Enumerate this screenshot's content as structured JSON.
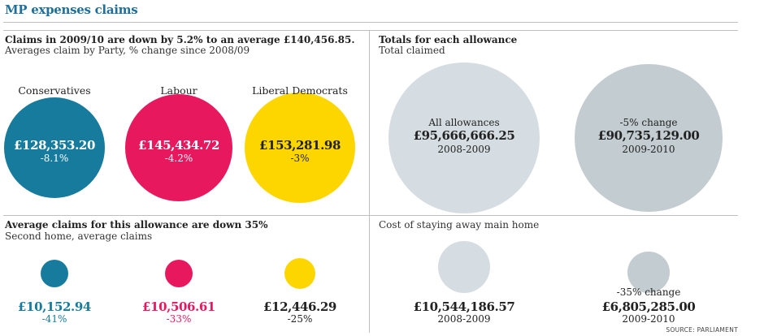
{
  "title": "MP expenses claims",
  "source": "SOURCE: PARLIAMENT",
  "colors": {
    "conservatives": "#177b9e",
    "labour": "#e8185f",
    "libdem": "#fdd600",
    "grey_light": "#d5dde2",
    "grey_dark": "#c3ccd1",
    "title_blue": "#1f6f9a"
  },
  "panels": {
    "party_average": {
      "title": "Claims in 2009/10 are down by 5.2% to an average £140,456.85.",
      "subtitle": "Averages claim by Party, % change since 2008/09"
    },
    "second_home": {
      "title": "Average claims for this allowance are down 35%",
      "subtitle": "Second home, average claims"
    },
    "totals": {
      "title": "Totals for each allowance",
      "subtitle": "Total claimed"
    },
    "main_home": {
      "title": "Cost of staying away main home"
    }
  },
  "chart_data": [
    {
      "type": "bubble",
      "title": "Claims in 2009/10 are down by 5.2% to an average £140,456.85.",
      "subtitle": "Averages claim by Party, % change since 2008/09",
      "categories": [
        "Conservatives",
        "Labour",
        "Liberal Democrats"
      ],
      "values": [
        128353.2,
        145434.72,
        153281.98
      ],
      "value_labels": [
        "£128,353.20",
        "£145,434.72",
        "£153,281.98"
      ],
      "change_labels": [
        "-8.1%",
        "-4.2%",
        "-3%"
      ],
      "change_pct": [
        -8.1,
        -4.2,
        -3
      ]
    },
    {
      "type": "bubble",
      "title": "Average claims for this allowance are down 35%",
      "subtitle": "Second home, average claims",
      "categories": [
        "Conservatives",
        "Labour",
        "Liberal Democrats"
      ],
      "values": [
        10152.94,
        10506.61,
        12446.29
      ],
      "value_labels": [
        "£10,152.94",
        "£10,506.61",
        "£12,446.29"
      ],
      "change_labels": [
        "-41%",
        "-33%",
        "-25%"
      ],
      "change_pct": [
        -41,
        -33,
        -25
      ]
    },
    {
      "type": "bubble",
      "title": "Totals for each allowance",
      "subtitle": "Total claimed",
      "categories": [
        "2008-2009",
        "2009-2010"
      ],
      "values": [
        95666666.25,
        90735129.0
      ],
      "value_labels": [
        "£95,666,666.25",
        "£90,735,129.00"
      ],
      "notes": [
        "All allowances",
        "-5% change"
      ]
    },
    {
      "type": "bubble",
      "title": "Cost of staying away main home",
      "categories": [
        "2008-2009",
        "2009-2010"
      ],
      "values": [
        10544186.57,
        6805285.0
      ],
      "value_labels": [
        "£10,544,186.57",
        "£6,805,285.00"
      ],
      "notes": [
        "",
        "-35% change"
      ]
    }
  ]
}
